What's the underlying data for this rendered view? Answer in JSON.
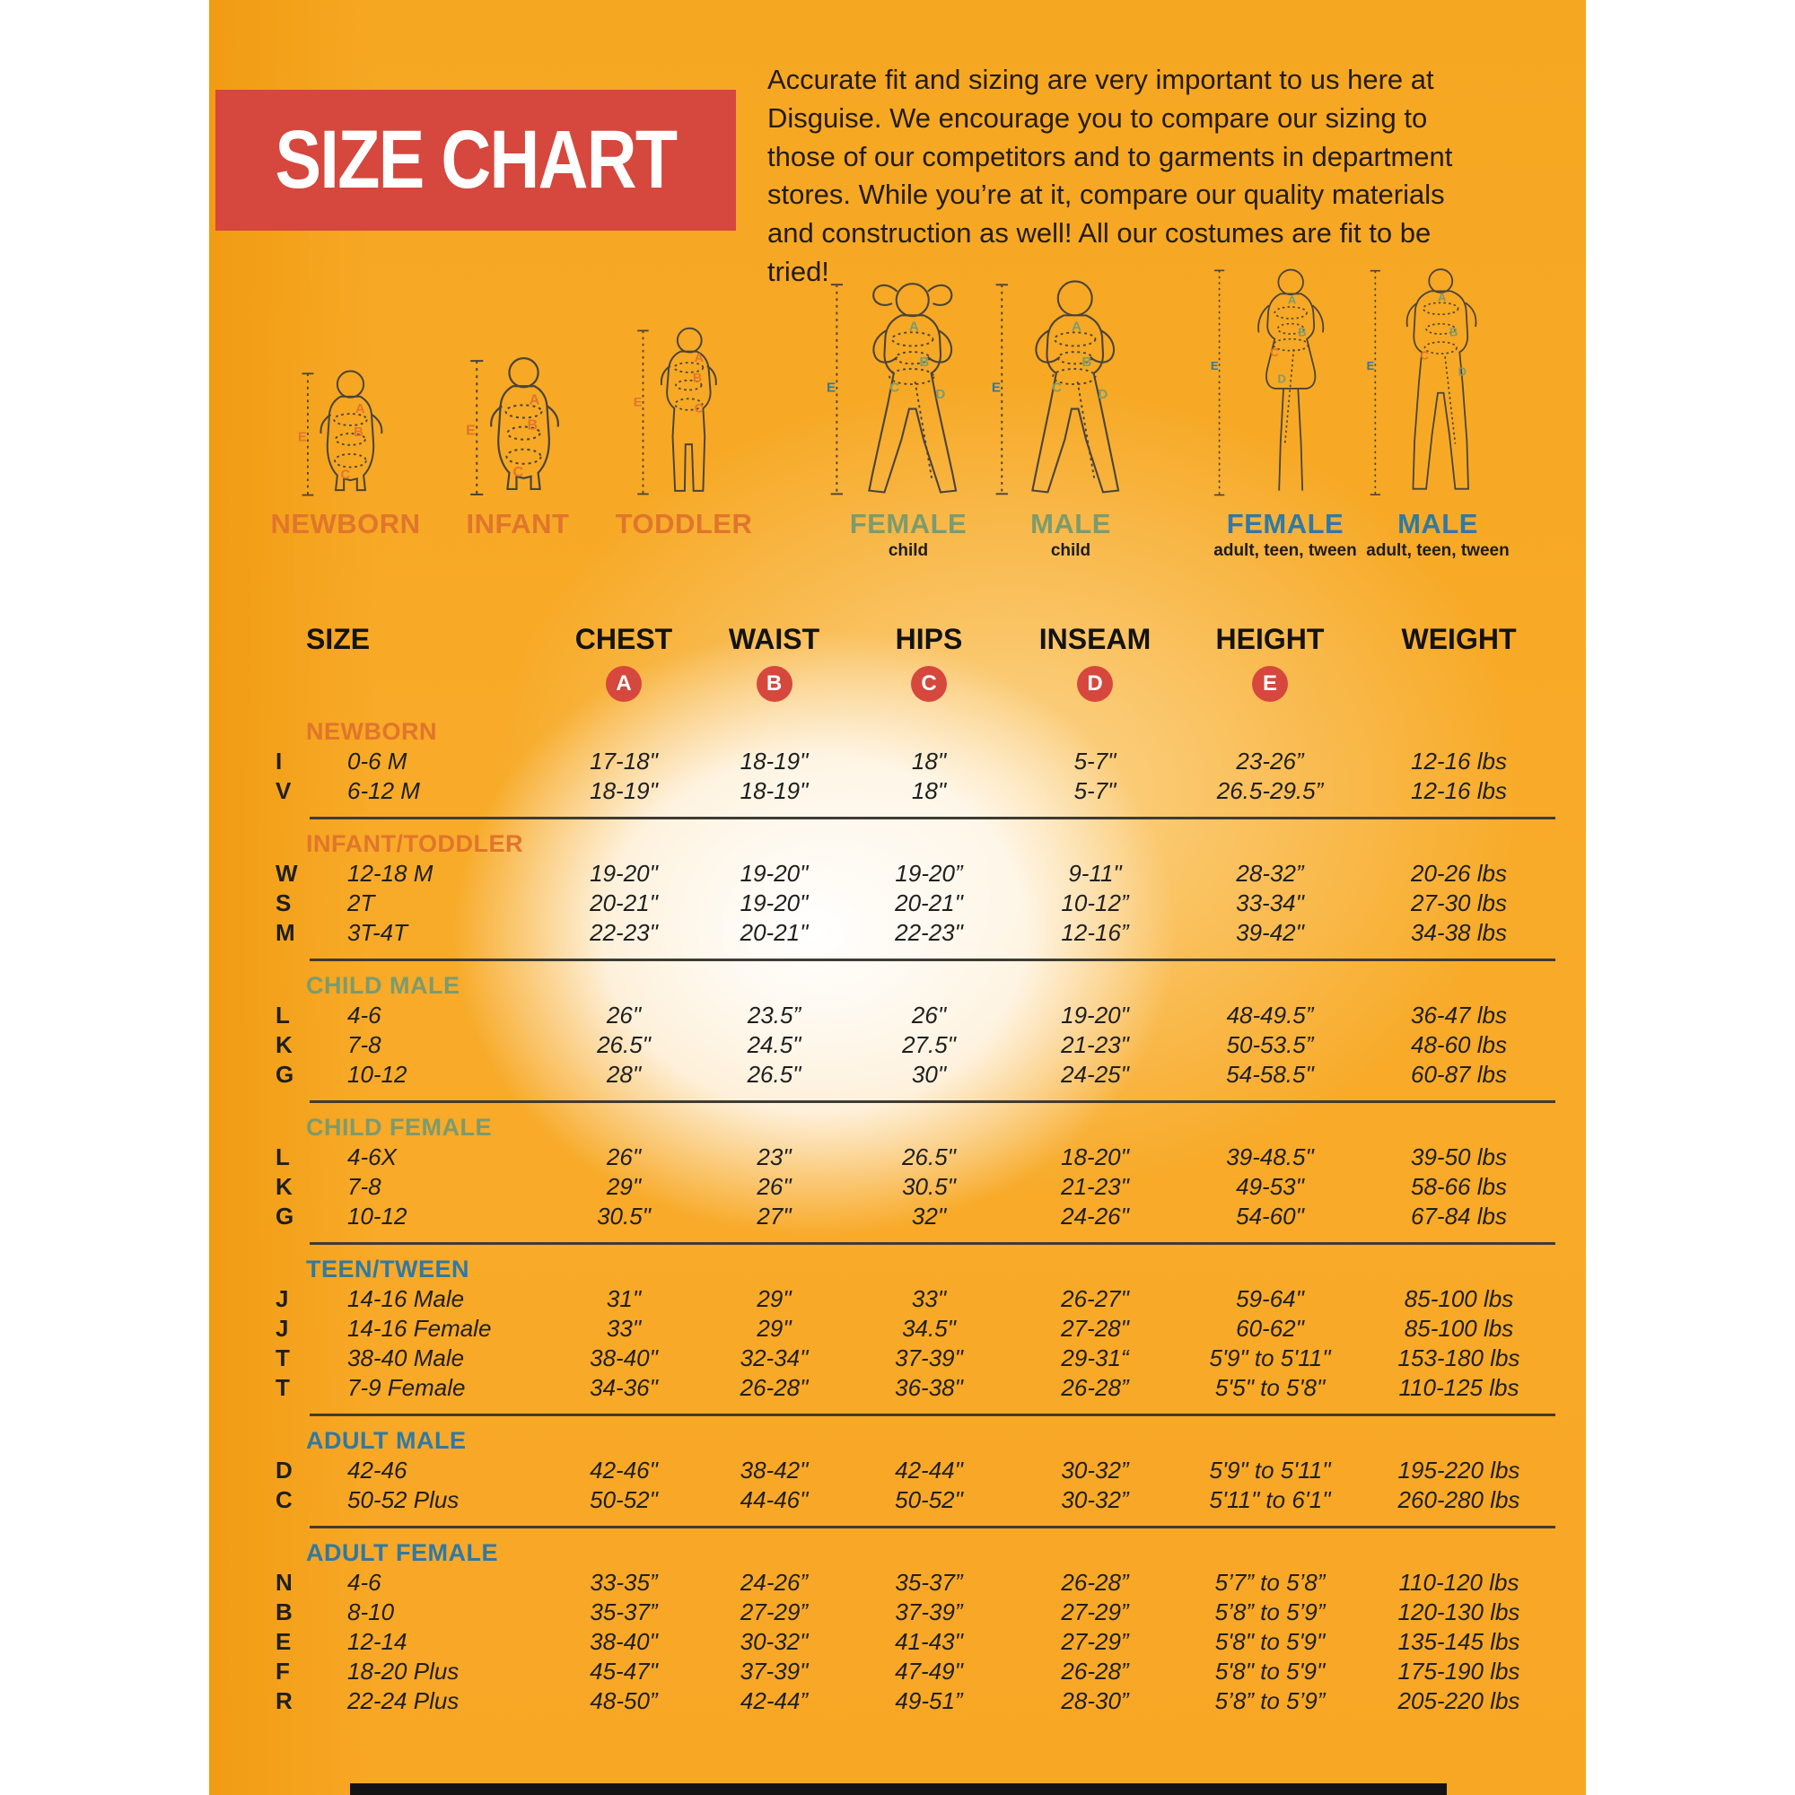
{
  "banner": {
    "title": "SIZE CHART",
    "background": "#d6473d",
    "text_color": "#ffffff"
  },
  "intro": {
    "text": "Accurate fit and sizing are very important to us here at Disguise. We encourage you to compare our sizing to those of our competitors and to garments in department stores. While you’re at it, compare our quality materials and construction as well! All our costumes are fit to be tried!"
  },
  "colors": {
    "orange": "#e0752c",
    "green": "#7c9b6e",
    "blue": "#2f79a5",
    "badge_red": "#d6473d",
    "text": "#1f1f1f",
    "background_amber": "#f7a824"
  },
  "figures": [
    {
      "id": "newborn",
      "label": "NEWBORN",
      "sublabel": "",
      "label_color": "#e0752c",
      "letters": [
        "A",
        "B",
        "C",
        "E"
      ],
      "letter_color": "#e0752c",
      "e_color": "#e0752c",
      "letter_overrides": {}
    },
    {
      "id": "infant",
      "label": "INFANT",
      "sublabel": "",
      "label_color": "#e0752c",
      "letters": [
        "A",
        "B",
        "C",
        "E"
      ],
      "letter_color": "#e0752c",
      "e_color": "#e0752c",
      "letter_overrides": {}
    },
    {
      "id": "toddler",
      "label": "TODDLER",
      "sublabel": "",
      "label_color": "#e0752c",
      "letters": [
        "A",
        "B",
        "C",
        "E"
      ],
      "letter_color": "#e0752c",
      "e_color": "#e0752c",
      "letter_overrides": {}
    },
    {
      "id": "female-child",
      "label": "FEMALE",
      "sublabel": "child",
      "label_color": "#7c9b6e",
      "letters": [
        "A",
        "B",
        "C",
        "D",
        "E"
      ],
      "letter_color": "#7c9b6e",
      "e_color": "#2f79a5",
      "letter_overrides": {}
    },
    {
      "id": "male-child",
      "label": "MALE",
      "sublabel": "child",
      "label_color": "#7c9b6e",
      "letters": [
        "A",
        "B",
        "C",
        "D",
        "E"
      ],
      "letter_color": "#7c9b6e",
      "e_color": "#2f79a5",
      "letter_overrides": {}
    },
    {
      "id": "female-adult",
      "label": "FEMALE",
      "sublabel": "adult, teen, tween",
      "label_color": "#2f79a5",
      "letters": [
        "A",
        "B",
        "C",
        "D",
        "E"
      ],
      "letter_color": "#7c9b6e",
      "e_color": "#2f79a5",
      "letter_overrides": {
        "C": "#e0752c"
      }
    },
    {
      "id": "male-adult",
      "label": "MALE",
      "sublabel": "adult, teen, tween",
      "label_color": "#2f79a5",
      "letters": [
        "A",
        "B",
        "C",
        "D",
        "E"
      ],
      "letter_color": "#7c9b6e",
      "e_color": "#2f79a5",
      "letter_overrides": {
        "C": "#e0752c"
      }
    }
  ],
  "table": {
    "columns": [
      "SIZE",
      "CHEST",
      "WAIST",
      "HIPS",
      "INSEAM",
      "HEIGHT",
      "WEIGHT"
    ],
    "badges": [
      "A",
      "B",
      "C",
      "D",
      "E"
    ],
    "sections": [
      {
        "title": "NEWBORN",
        "color": "#e0752c",
        "rows": [
          {
            "code": "I",
            "size": "0-6 M",
            "chest": "17-18\"",
            "waist": "18-19\"",
            "hips": "18\"",
            "inseam": "5-7\"",
            "height": "23-26”",
            "weight": "12-16 lbs"
          },
          {
            "code": "V",
            "size": "6-12 M",
            "chest": "18-19\"",
            "waist": "18-19\"",
            "hips": "18\"",
            "inseam": "5-7\"",
            "height": "26.5-29.5”",
            "weight": "12-16 lbs"
          }
        ]
      },
      {
        "title": "INFANT/TODDLER",
        "color": "#e0752c",
        "rows": [
          {
            "code": "W",
            "size": "12-18 M",
            "chest": "19-20\"",
            "waist": "19-20\"",
            "hips": "19-20”",
            "inseam": "9-11\"",
            "height": "28-32”",
            "weight": "20-26 lbs"
          },
          {
            "code": "S",
            "size": "2T",
            "chest": "20-21\"",
            "waist": "19-20\"",
            "hips": "20-21\"",
            "inseam": "10-12”",
            "height": "33-34\"",
            "weight": "27-30 lbs"
          },
          {
            "code": "M",
            "size": "3T-4T",
            "chest": "22-23\"",
            "waist": "20-21\"",
            "hips": "22-23\"",
            "inseam": "12-16”",
            "height": "39-42\"",
            "weight": "34-38 lbs"
          }
        ]
      },
      {
        "title": "CHILD MALE",
        "color": "#7c9b6e",
        "rows": [
          {
            "code": "L",
            "size": "4-6",
            "chest": "26\"",
            "waist": "23.5”",
            "hips": "26\"",
            "inseam": "19-20\"",
            "height": "48-49.5”",
            "weight": "36-47 lbs"
          },
          {
            "code": "K",
            "size": "7-8",
            "chest": "26.5\"",
            "waist": "24.5\"",
            "hips": "27.5\"",
            "inseam": "21-23\"",
            "height": "50-53.5”",
            "weight": "48-60 lbs"
          },
          {
            "code": "G",
            "size": "10-12",
            "chest": "28\"",
            "waist": "26.5\"",
            "hips": "30\"",
            "inseam": "24-25\"",
            "height": "54-58.5\"",
            "weight": "60-87 lbs"
          }
        ]
      },
      {
        "title": "CHILD FEMALE",
        "color": "#7c9b6e",
        "rows": [
          {
            "code": "L",
            "size": "4-6X",
            "chest": "26\"",
            "waist": "23\"",
            "hips": "26.5\"",
            "inseam": "18-20\"",
            "height": "39-48.5\"",
            "weight": "39-50 lbs"
          },
          {
            "code": "K",
            "size": "7-8",
            "chest": "29\"",
            "waist": "26\"",
            "hips": "30.5\"",
            "inseam": "21-23\"",
            "height": "49-53\"",
            "weight": "58-66 lbs"
          },
          {
            "code": "G",
            "size": "10-12",
            "chest": "30.5\"",
            "waist": "27\"",
            "hips": "32\"",
            "inseam": "24-26\"",
            "height": "54-60\"",
            "weight": "67-84 lbs"
          }
        ]
      },
      {
        "title": "TEEN/TWEEN",
        "color": "#2f79a5",
        "rows": [
          {
            "code": "J",
            "size": "14-16 Male",
            "chest": "31\"",
            "waist": "29\"",
            "hips": "33\"",
            "inseam": "26-27\"",
            "height": "59-64\"",
            "weight": "85-100 lbs"
          },
          {
            "code": "J",
            "size": "14-16 Female",
            "chest": "33\"",
            "waist": "29\"",
            "hips": "34.5\"",
            "inseam": "27-28\"",
            "height": "60-62\"",
            "weight": "85-100 lbs"
          },
          {
            "code": "T",
            "size": "38-40 Male",
            "chest": "38-40\"",
            "waist": "32-34\"",
            "hips": "37-39\"",
            "inseam": "29-31“",
            "height": "5'9\" to 5'11\"",
            "weight": "153-180 lbs"
          },
          {
            "code": "T",
            "size": "7-9 Female",
            "chest": "34-36\"",
            "waist": "26-28\"",
            "hips": "36-38\"",
            "inseam": "26-28”",
            "height": "5'5\" to 5'8\"",
            "weight": "110-125 lbs"
          }
        ]
      },
      {
        "title": "ADULT MALE",
        "color": "#2f79a5",
        "rows": [
          {
            "code": "D",
            "size": "42-46",
            "chest": "42-46\"",
            "waist": "38-42\"",
            "hips": "42-44\"",
            "inseam": "30-32”",
            "height": "5'9\" to 5'11\"",
            "weight": "195-220 lbs"
          },
          {
            "code": "C",
            "size": "50-52 Plus",
            "chest": "50-52\"",
            "waist": "44-46\"",
            "hips": "50-52\"",
            "inseam": "30-32”",
            "height": "5'11\" to 6'1\"",
            "weight": "260-280 lbs"
          }
        ]
      },
      {
        "title": "ADULT FEMALE",
        "color": "#2f79a5",
        "rows": [
          {
            "code": "N",
            "size": "4-6",
            "chest": "33-35”",
            "waist": "24-26”",
            "hips": "35-37”",
            "inseam": "26-28”",
            "height": "5’7” to 5’8”",
            "weight": "110-120 lbs"
          },
          {
            "code": "B",
            "size": "8-10",
            "chest": "35-37”",
            "waist": "27-29”",
            "hips": "37-39”",
            "inseam": "27-29”",
            "height": "5’8” to 5’9”",
            "weight": "120-130 lbs"
          },
          {
            "code": "E",
            "size": "12-14",
            "chest": "38-40\"",
            "waist": "30-32\"",
            "hips": "41-43\"",
            "inseam": "27-29”",
            "height": "5'8\" to 5'9\"",
            "weight": "135-145 lbs"
          },
          {
            "code": "F",
            "size": "18-20 Plus",
            "chest": "45-47\"",
            "waist": "37-39\"",
            "hips": "47-49\"",
            "inseam": "26-28”",
            "height": "5'8\" to 5'9\"",
            "weight": "175-190 lbs"
          },
          {
            "code": "R",
            "size": "22-24 Plus",
            "chest": "48-50”",
            "waist": "42-44”",
            "hips": "49-51”",
            "inseam": "28-30”",
            "height": "5’8” to 5’9”",
            "weight": "205-220 lbs"
          }
        ]
      }
    ]
  }
}
